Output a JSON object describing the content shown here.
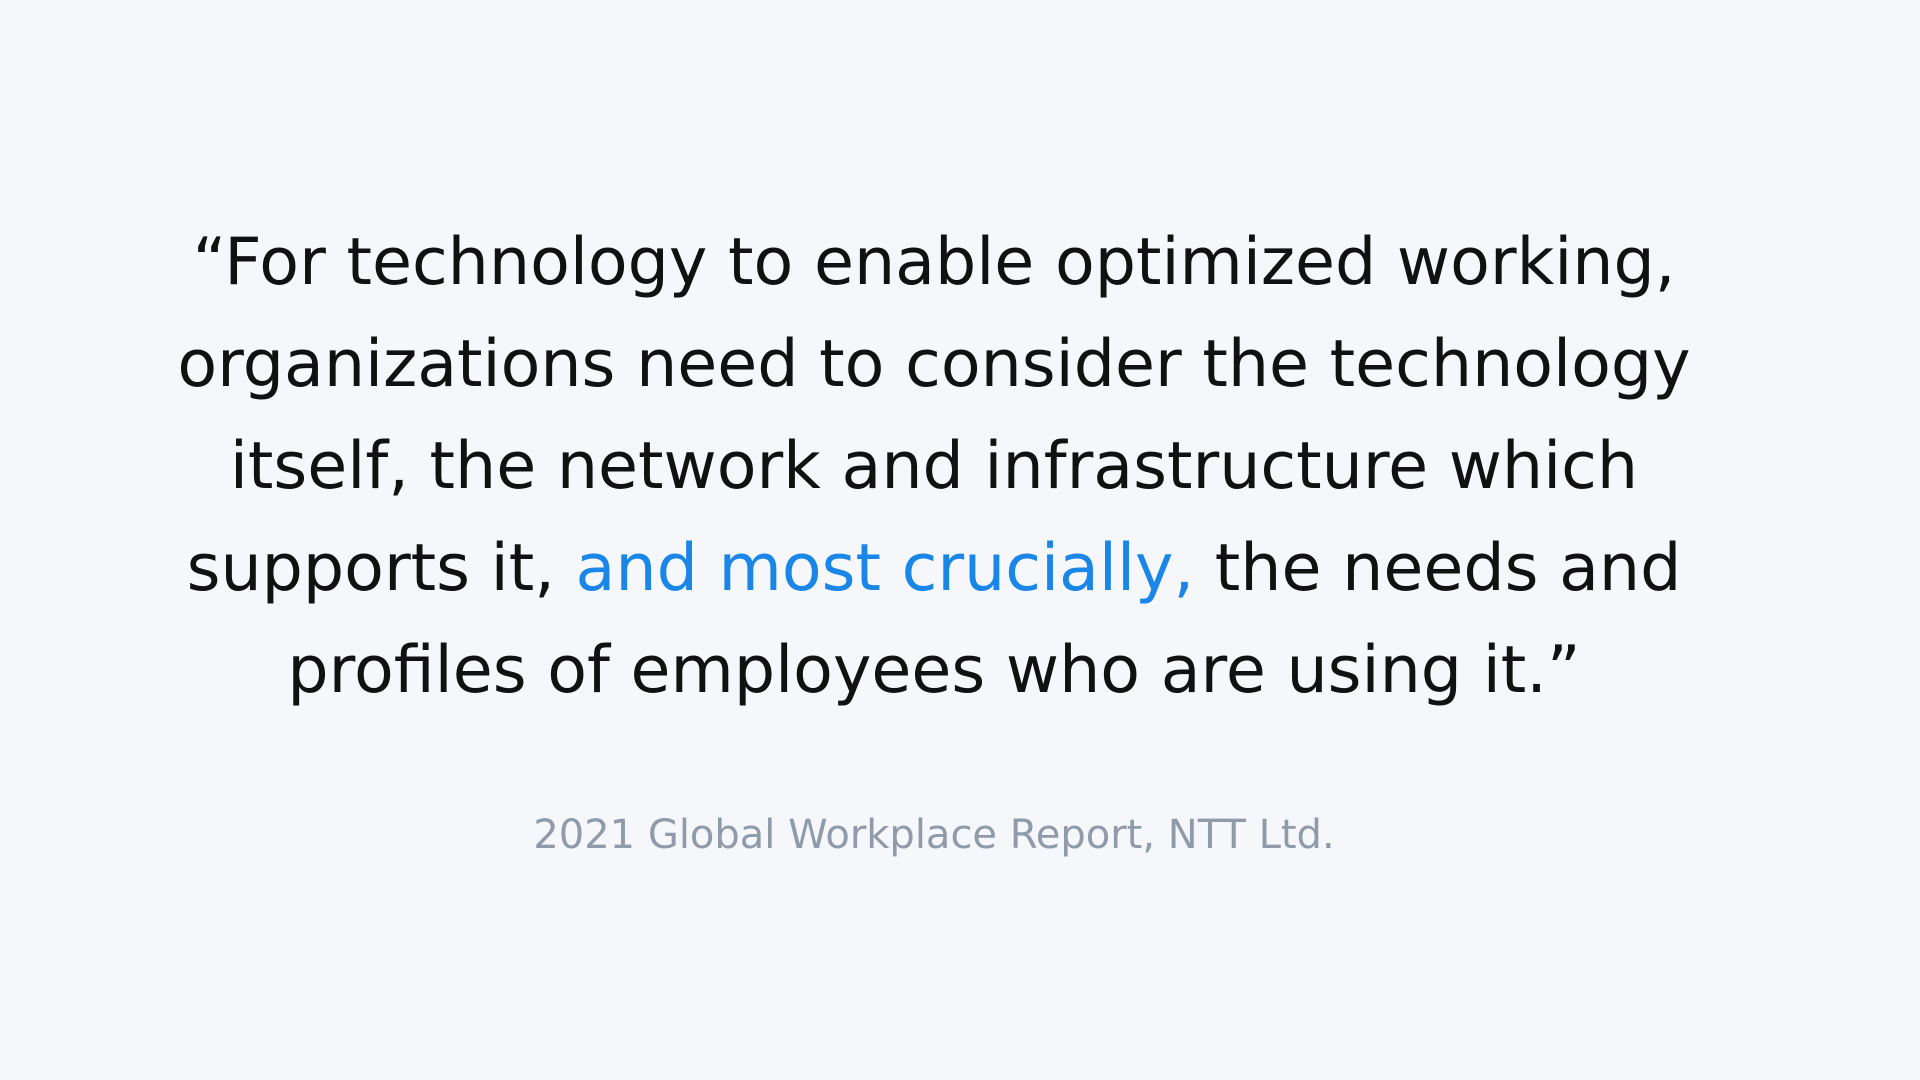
{
  "quote": {
    "line1": "“For technology to enable optimized working,",
    "line2": "organizations need to consider the technology",
    "line3": "itself, the network and infrastructure which",
    "line4_before": "supports it, ",
    "line4_highlight": "and most crucially,",
    "line4_after": " the needs and",
    "line5": "profiles of employees who are using it.”"
  },
  "attribution": "2021 Global Workplace Report, NTT Ltd.",
  "colors": {
    "background": "#f5f7fa",
    "text": "#111111",
    "highlight": "#1a86e8",
    "attribution": "#8f9bab"
  }
}
